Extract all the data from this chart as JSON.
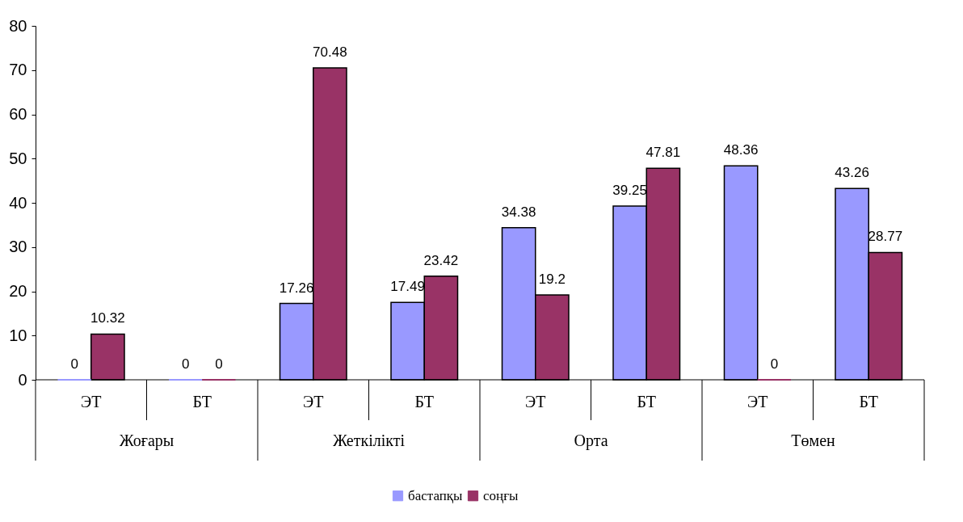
{
  "chart_data": {
    "type": "bar",
    "categories": [
      "ЭТ",
      "БТ",
      "ЭТ",
      "БТ",
      "ЭТ",
      "БТ",
      "ЭТ",
      "БТ"
    ],
    "series": [
      {
        "name": "бастапқы",
        "color": "#9999ff",
        "values": [
          0,
          0,
          17.26,
          17.49,
          34.38,
          39.25,
          48.36,
          43.26
        ]
      },
      {
        "name": "соңғы",
        "color": "#993366",
        "values": [
          10.32,
          0,
          70.48,
          23.42,
          19.2,
          47.81,
          0,
          28.77
        ]
      }
    ],
    "annotations": [
      "Жоғары",
      "Жеткілікті",
      "Орта",
      "Төмен"
    ],
    "ylim": [
      0,
      80
    ],
    "yticks": [
      0,
      10,
      20,
      30,
      40,
      50,
      60,
      70,
      80
    ],
    "data_labels": true,
    "grid": false,
    "legend": "bottom"
  }
}
